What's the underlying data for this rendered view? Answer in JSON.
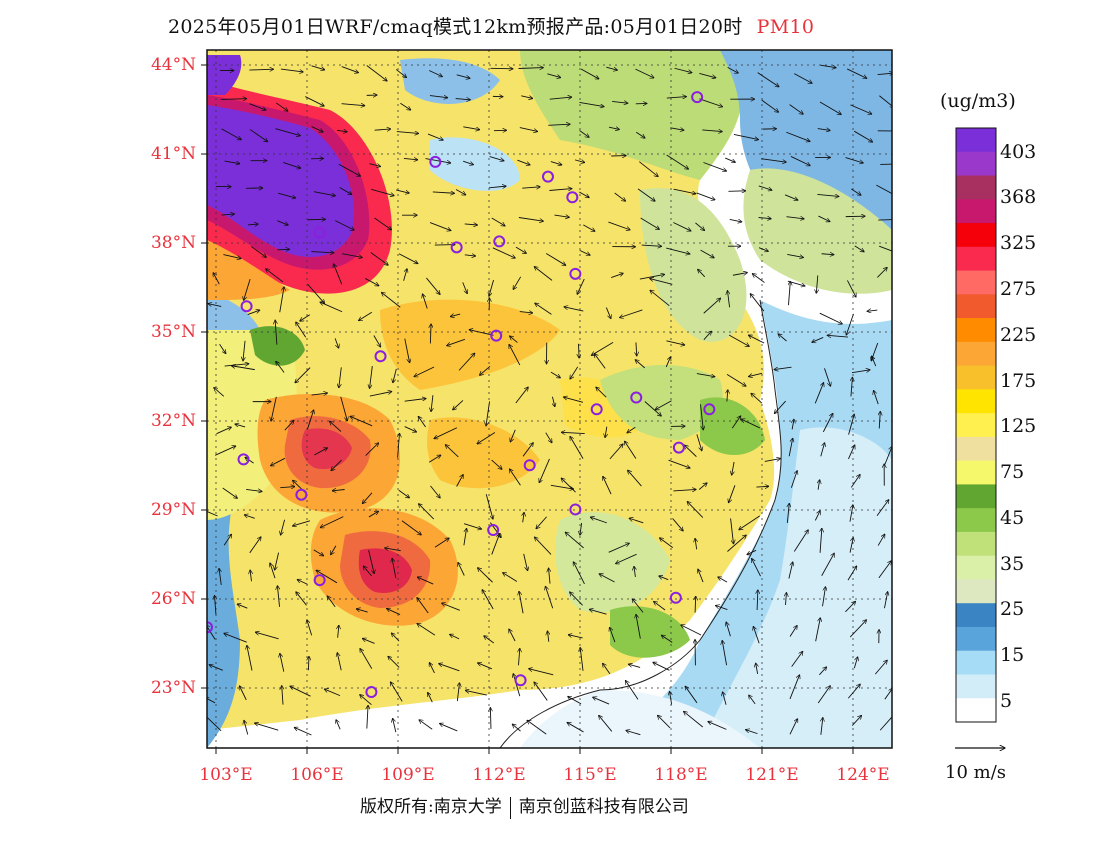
{
  "title": {
    "main": "2025年05月01日WRF/cmaq模式12km预报产品:05月01日20时",
    "variable": "PM10"
  },
  "axes": {
    "lat_labels": [
      "44°N",
      "41°N",
      "38°N",
      "35°N",
      "32°N",
      "29°N",
      "26°N",
      "23°N"
    ],
    "lon_labels": [
      "103°E",
      "106°E",
      "109°E",
      "112°E",
      "115°E",
      "118°E",
      "121°E",
      "124°E"
    ],
    "lat_range": [
      20.9,
      44.6
    ],
    "lon_range": [
      102.9,
      125.4
    ]
  },
  "legend": {
    "unit": "(ug/m3)",
    "labels": [
      "403",
      "368",
      "325",
      "275",
      "225",
      "175",
      "125",
      "75",
      "45",
      "35",
      "25",
      "15",
      "5"
    ],
    "colors": [
      "#7b2fd8",
      "#9a38cc",
      "#a83060",
      "#c8186e",
      "#f5000a",
      "#fa2a4e",
      "#ff6a64",
      "#f05a2c",
      "#ff8c00",
      "#fca636",
      "#f8c02a",
      "#ffe400",
      "#fff050",
      "#f0e0a0",
      "#f4f86a",
      "#62a632",
      "#8cc84a",
      "#c0e07a",
      "#daf0a8",
      "#dde8c0",
      "#3a84c4",
      "#5aa4dc",
      "#a6dcf6",
      "#d2ecf8",
      "#ffffff"
    ],
    "colors_note": "top-to-bottom color bins"
  },
  "wind": {
    "reference_label": "10 m/s"
  },
  "footer": {
    "left": "版权所有:南京大学",
    "right": "南京创蓝科技有限公司"
  },
  "cities": [
    {
      "lon": 110.4,
      "lat": 40.8
    },
    {
      "lon": 114.1,
      "lat": 40.3
    },
    {
      "lon": 114.9,
      "lat": 39.6
    },
    {
      "lon": 112.5,
      "lat": 38.1
    },
    {
      "lon": 111.1,
      "lat": 37.9
    },
    {
      "lon": 106.6,
      "lat": 38.4
    },
    {
      "lon": 115.0,
      "lat": 37.0
    },
    {
      "lon": 104.2,
      "lat": 35.9
    },
    {
      "lon": 112.4,
      "lat": 34.9
    },
    {
      "lon": 108.6,
      "lat": 34.2
    },
    {
      "lon": 115.7,
      "lat": 32.4
    },
    {
      "lon": 117.0,
      "lat": 32.8
    },
    {
      "lon": 119.4,
      "lat": 32.4
    },
    {
      "lon": 118.4,
      "lat": 31.1
    },
    {
      "lon": 104.1,
      "lat": 30.7
    },
    {
      "lon": 113.5,
      "lat": 30.5
    },
    {
      "lon": 106.0,
      "lat": 29.5
    },
    {
      "lon": 115.0,
      "lat": 29.0
    },
    {
      "lon": 112.3,
      "lat": 28.3
    },
    {
      "lon": 106.6,
      "lat": 26.6
    },
    {
      "lon": 118.3,
      "lat": 26.0
    },
    {
      "lon": 102.9,
      "lat": 25.0
    },
    {
      "lon": 108.3,
      "lat": 22.8
    },
    {
      "lon": 113.2,
      "lat": 23.2
    },
    {
      "lon": 119.0,
      "lat": 43.0
    }
  ]
}
